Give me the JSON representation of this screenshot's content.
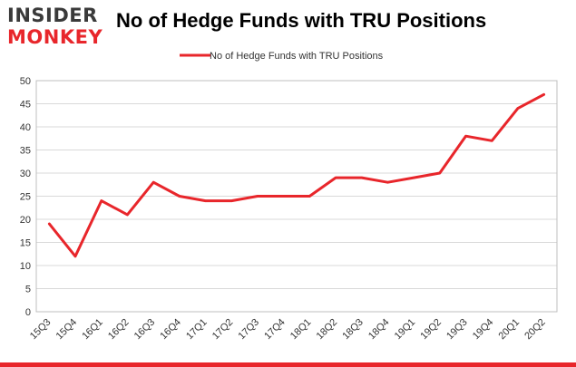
{
  "logo": {
    "line1": "INSIDER",
    "line2": "MONKEY"
  },
  "chart_data": {
    "type": "line",
    "title": "No of Hedge Funds with TRU Positions",
    "categories": [
      "15Q3",
      "15Q4",
      "16Q1",
      "16Q2",
      "16Q3",
      "16Q4",
      "17Q1",
      "17Q2",
      "17Q3",
      "17Q4",
      "18Q1",
      "18Q2",
      "18Q3",
      "18Q4",
      "19Q1",
      "19Q2",
      "19Q3",
      "19Q4",
      "20Q1",
      "20Q2"
    ],
    "series": [
      {
        "name": "No of Hedge Funds with TRU Positions",
        "color": "#e8262b",
        "values": [
          19,
          12,
          24,
          21,
          28,
          25,
          24,
          24,
          25,
          25,
          25,
          29,
          29,
          28,
          29,
          30,
          38,
          37,
          44,
          47
        ]
      }
    ],
    "ylim": [
      0,
      50
    ],
    "yticks": [
      0,
      5,
      10,
      15,
      20,
      25,
      30,
      35,
      40,
      45,
      50
    ],
    "xlabel": "",
    "ylabel": "",
    "grid": true,
    "legend_position": "top-center"
  }
}
